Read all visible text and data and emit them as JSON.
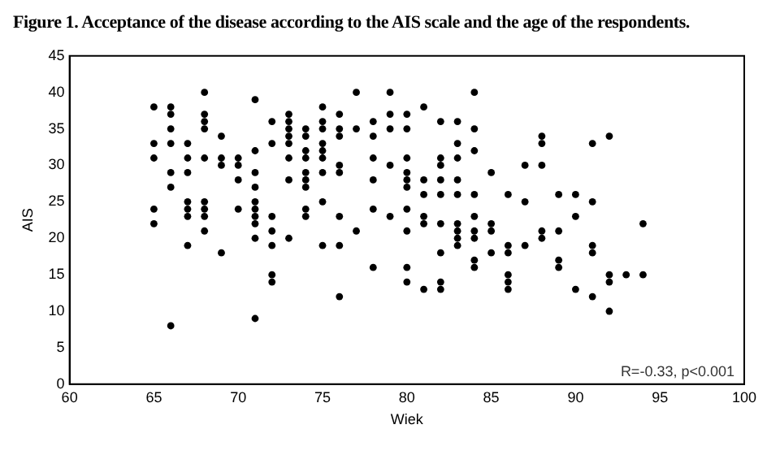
{
  "chart_data": {
    "type": "scatter",
    "title": "Figure 1. Acceptance of the disease according to the AIS scale and the age of the respondents.",
    "xlabel": "Wiek",
    "ylabel": "AIS",
    "xlim": [
      60,
      100
    ],
    "xticks": [
      60,
      65,
      70,
      75,
      80,
      85,
      90,
      95,
      100
    ],
    "ylim": [
      0,
      45
    ],
    "yticks": [
      0,
      5,
      10,
      15,
      20,
      25,
      30,
      35,
      40,
      45
    ],
    "grid": false,
    "legend": false,
    "marker": "circle",
    "annotations": [
      "R=-0.33, p<0.001"
    ],
    "series": [
      {
        "color": "#000000",
        "x": [
          65,
          65,
          65,
          65,
          65,
          66,
          66,
          66,
          66,
          66,
          66,
          66,
          67,
          67,
          67,
          67,
          67,
          67,
          67,
          68,
          68,
          68,
          68,
          68,
          68,
          68,
          68,
          68,
          69,
          69,
          69,
          69,
          70,
          70,
          70,
          70,
          71,
          71,
          71,
          71,
          71,
          71,
          71,
          71,
          71,
          71,
          72,
          72,
          72,
          72,
          72,
          72,
          72,
          73,
          73,
          73,
          73,
          73,
          73,
          73,
          73,
          74,
          74,
          74,
          74,
          74,
          74,
          74,
          74,
          74,
          75,
          75,
          75,
          75,
          75,
          75,
          75,
          75,
          75,
          76,
          76,
          76,
          76,
          76,
          76,
          76,
          76,
          77,
          77,
          77,
          78,
          78,
          78,
          78,
          78,
          78,
          79,
          79,
          79,
          79,
          79,
          80,
          80,
          80,
          80,
          80,
          80,
          80,
          80,
          80,
          80,
          81,
          81,
          81,
          81,
          81,
          81,
          82,
          82,
          82,
          82,
          82,
          82,
          82,
          82,
          82,
          83,
          83,
          83,
          83,
          83,
          83,
          83,
          83,
          83,
          84,
          84,
          84,
          84,
          84,
          84,
          84,
          84,
          84,
          85,
          85,
          85,
          85,
          86,
          86,
          86,
          86,
          86,
          86,
          87,
          87,
          87,
          88,
          88,
          88,
          88,
          88,
          89,
          89,
          89,
          89,
          90,
          90,
          90,
          91,
          91,
          91,
          91,
          91,
          92,
          92,
          92,
          92,
          93,
          94,
          94
        ],
        "values": [
          38,
          33,
          31,
          24,
          22,
          38,
          37,
          35,
          33,
          29,
          27,
          8,
          33,
          31,
          29,
          25,
          24,
          23,
          19,
          40,
          37,
          36,
          35,
          31,
          25,
          24,
          23,
          21,
          34,
          31,
          30,
          18,
          31,
          30,
          28,
          24,
          39,
          32,
          29,
          27,
          25,
          24,
          23,
          22,
          20,
          9,
          36,
          33,
          23,
          21,
          19,
          15,
          14,
          37,
          36,
          35,
          34,
          33,
          31,
          28,
          20,
          35,
          34,
          32,
          31,
          29,
          28,
          27,
          24,
          23,
          38,
          36,
          35,
          33,
          32,
          31,
          29,
          25,
          19,
          37,
          35,
          34,
          30,
          29,
          23,
          19,
          12,
          40,
          35,
          21,
          36,
          34,
          31,
          28,
          24,
          16,
          40,
          37,
          35,
          30,
          23,
          37,
          35,
          31,
          29,
          28,
          27,
          24,
          21,
          16,
          14,
          38,
          28,
          26,
          23,
          22,
          13,
          36,
          31,
          30,
          28,
          26,
          22,
          18,
          14,
          13,
          36,
          33,
          31,
          28,
          26,
          22,
          21,
          20,
          19,
          40,
          35,
          32,
          26,
          23,
          21,
          20,
          17,
          16,
          29,
          22,
          21,
          18,
          26,
          19,
          18,
          15,
          14,
          13,
          30,
          25,
          19,
          34,
          33,
          30,
          21,
          20,
          26,
          21,
          17,
          16,
          26,
          23,
          13,
          33,
          25,
          19,
          18,
          12,
          34,
          15,
          14,
          10,
          15,
          22,
          15
        ]
      }
    ]
  }
}
